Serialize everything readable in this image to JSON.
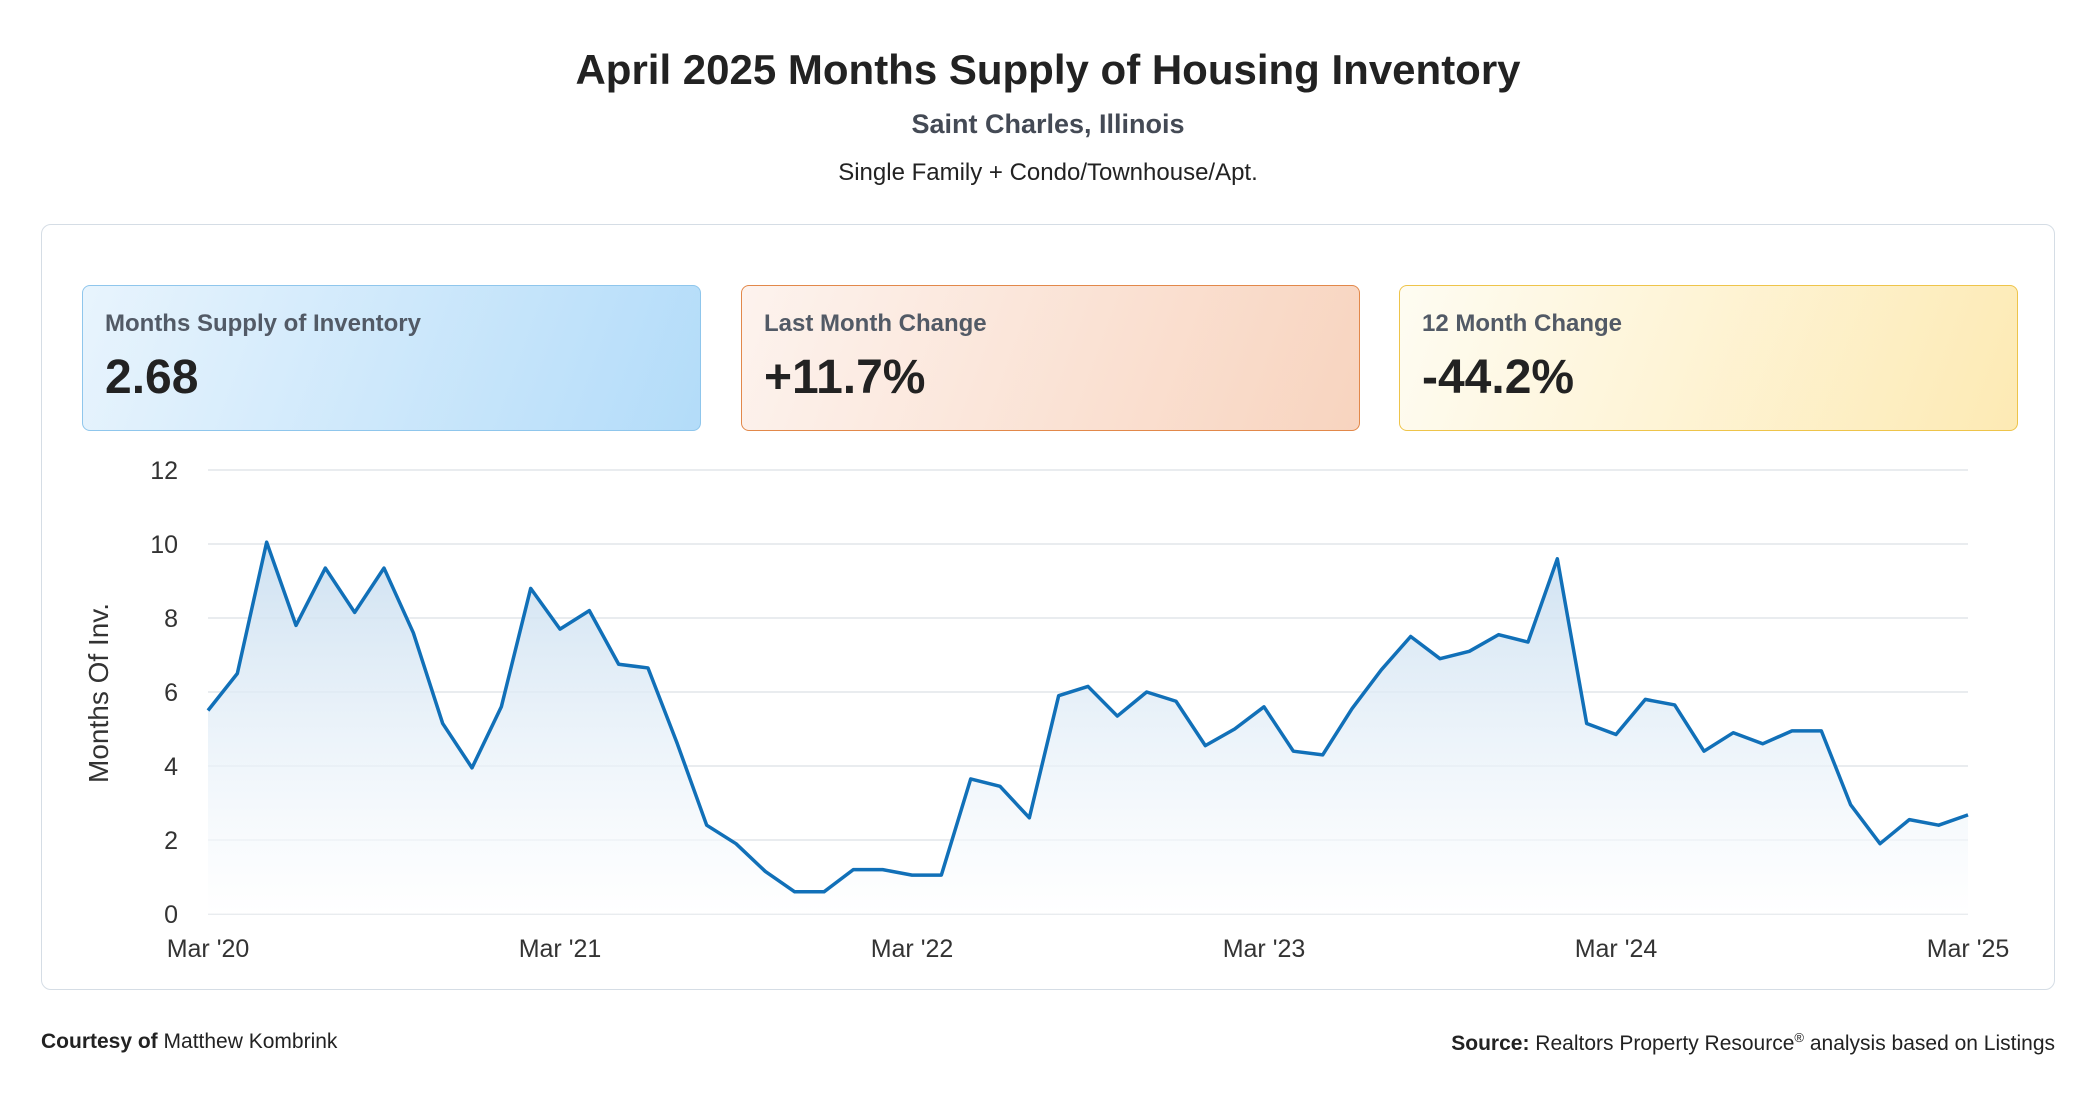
{
  "header": {
    "title": "April 2025 Months Supply of Housing Inventory",
    "location": "Saint Charles, Illinois",
    "segment": "Single Family + Condo/Townhouse/Apt."
  },
  "kpis": [
    {
      "label": "Months Supply of Inventory",
      "value": "2.68"
    },
    {
      "label": "Last Month Change",
      "value": "+11.7%"
    },
    {
      "label": "12 Month Change",
      "value": "-44.2%"
    }
  ],
  "footer": {
    "courtesy_label": "Courtesy of",
    "courtesy_name": "Matthew Kombrink",
    "source_label": "Source:",
    "source_name": "Realtors Property Resource",
    "source_mark": "®",
    "source_text": "analysis based on Listings"
  },
  "colors": {
    "line": "#1170b8",
    "area_top": "#c9def0",
    "grid": "#e2e6ea"
  },
  "chart_data": {
    "type": "area",
    "ylabel": "Months Of Inv.",
    "ylim": [
      0,
      12
    ],
    "yticks": [
      0,
      2,
      4,
      6,
      8,
      10,
      12
    ],
    "x_tick_labels": [
      "Mar '20",
      "Mar '21",
      "Mar '22",
      "Mar '23",
      "Mar '24",
      "Mar '25"
    ],
    "x_tick_indices": [
      0,
      12,
      24,
      36,
      48,
      60
    ],
    "grid": true,
    "series": [
      {
        "values": [
          5.5,
          6.5,
          10.05,
          7.8,
          9.35,
          8.15,
          9.35,
          7.6,
          5.15,
          3.95,
          5.6,
          8.8,
          7.7,
          8.2,
          6.75,
          6.65,
          4.6,
          2.4,
          1.9,
          1.15,
          0.6,
          0.6,
          1.2,
          1.2,
          1.05,
          1.05,
          3.65,
          3.45,
          2.6,
          5.9,
          6.15,
          5.35,
          6.0,
          5.75,
          4.55,
          5.0,
          5.6,
          4.4,
          4.3,
          5.55,
          6.6,
          7.5,
          6.9,
          7.1,
          7.55,
          7.35,
          9.6,
          5.15,
          4.85,
          5.8,
          5.65,
          4.4,
          4.9,
          4.6,
          4.95,
          4.95,
          2.95,
          1.9,
          2.55,
          2.4,
          2.68
        ]
      }
    ]
  }
}
